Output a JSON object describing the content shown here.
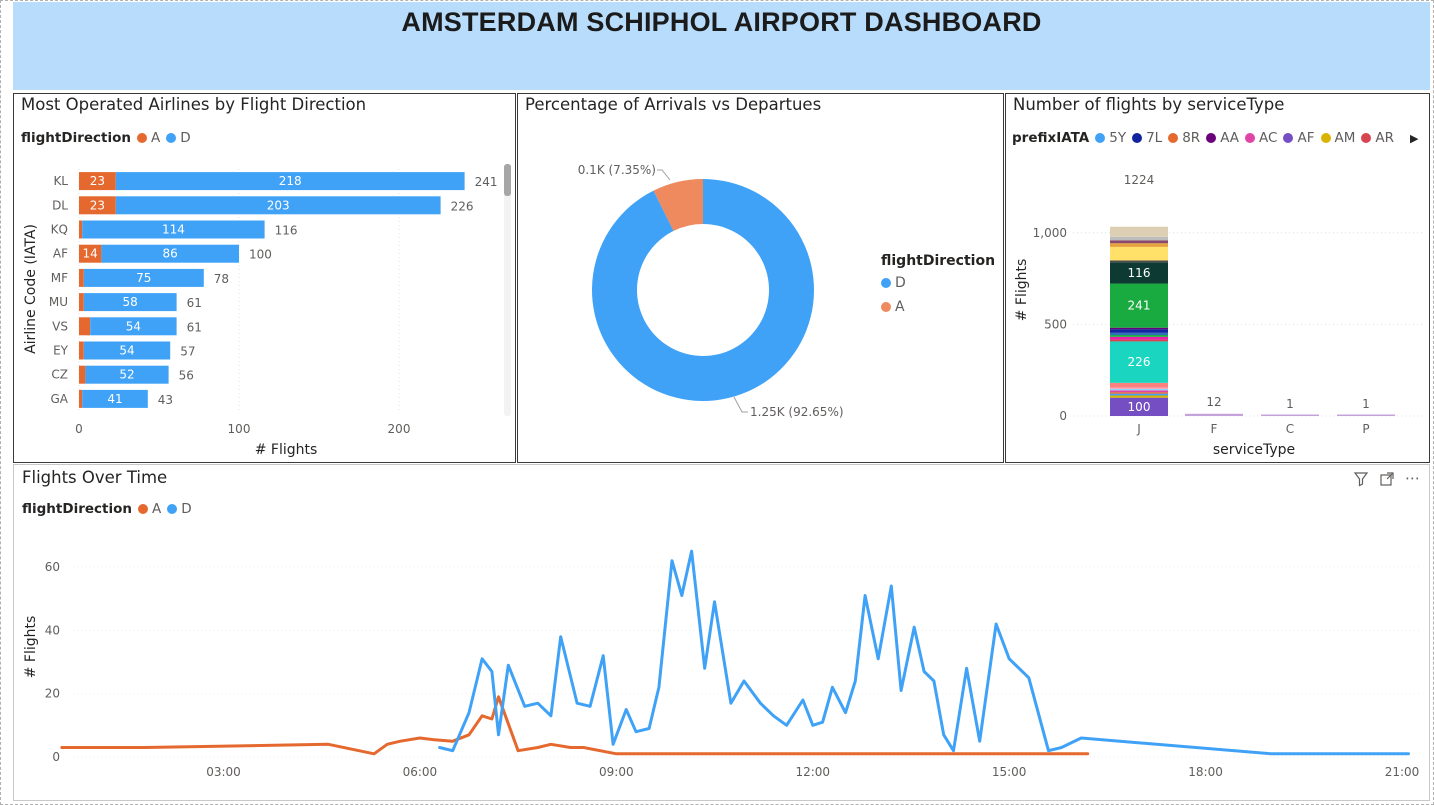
{
  "header": {
    "title": "AMSTERDAM SCHIPHOL AIRPORT DASHBOARD"
  },
  "colors": {
    "A": "#e5692f",
    "D": "#3fa2f7",
    "donutA": "#ee8a5e"
  },
  "panel_airlines": {
    "title": "Most Operated Airlines by Flight Direction",
    "legend_title": "flightDirection",
    "legend": [
      {
        "label": "A",
        "color": "#e5692f"
      },
      {
        "label": "D",
        "color": "#3fa2f7"
      }
    ]
  },
  "panel_donut": {
    "title": "Percentage of Arrivals vs Departues",
    "legend_title": "flightDirection",
    "legend": [
      {
        "label": "D",
        "color": "#3fa2f7"
      },
      {
        "label": "A",
        "color": "#ee8a5e"
      }
    ]
  },
  "panel_service": {
    "title": "Number of flights by serviceType",
    "legend_title": "prefixIATA",
    "legend": [
      {
        "label": "5Y",
        "color": "#3fa2f7"
      },
      {
        "label": "7L",
        "color": "#12239e"
      },
      {
        "label": "8R",
        "color": "#e5692f"
      },
      {
        "label": "AA",
        "color": "#6b007b"
      },
      {
        "label": "AC",
        "color": "#e044a7"
      },
      {
        "label": "AF",
        "color": "#744ec2"
      },
      {
        "label": "AM",
        "color": "#d9b300"
      },
      {
        "label": "AR",
        "color": "#d64550"
      }
    ]
  },
  "panel_time": {
    "title": "Flights Over Time",
    "legend_title": "flightDirection",
    "legend": [
      {
        "label": "A",
        "color": "#e5692f"
      },
      {
        "label": "D",
        "color": "#3fa2f7"
      }
    ]
  },
  "chart_data": [
    {
      "type": "bar",
      "orientation": "horizontal",
      "stacked": true,
      "title": "Most Operated Airlines by Flight Direction",
      "xlabel": "# Flights",
      "ylabel": "Airline Code (IATA)",
      "xlim": [
        0,
        250
      ],
      "xticks": [
        0,
        100,
        200
      ],
      "categories": [
        "KL",
        "DL",
        "KQ",
        "AF",
        "MF",
        "MU",
        "VS",
        "EY",
        "CZ",
        "GA"
      ],
      "series": [
        {
          "name": "A",
          "values": [
            23,
            23,
            2,
            14,
            3,
            3,
            7,
            3,
            4,
            2
          ],
          "labels": [
            "23",
            "23",
            "",
            "14",
            "",
            "",
            "",
            "",
            "",
            ""
          ]
        },
        {
          "name": "D",
          "values": [
            218,
            203,
            114,
            86,
            75,
            58,
            54,
            54,
            52,
            41
          ],
          "labels": [
            "218",
            "203",
            "114",
            "86",
            "75",
            "58",
            "54",
            "54",
            "52",
            "41"
          ]
        }
      ],
      "totals": [
        "241",
        "226",
        "116",
        "100",
        "78",
        "61",
        "61",
        "57",
        "56",
        "43"
      ],
      "total_values": [
        241,
        226,
        116,
        100,
        78,
        61,
        61,
        57,
        56,
        43
      ],
      "legend_position": "top-left"
    },
    {
      "type": "pie",
      "donut": true,
      "title": "Percentage of Arrivals vs Departues",
      "slices": [
        {
          "name": "D",
          "value": 92.65,
          "label": "1.25K (92.65%)"
        },
        {
          "name": "A",
          "value": 7.35,
          "label": "0.1K (7.35%)"
        }
      ],
      "legend_position": "right"
    },
    {
      "type": "bar",
      "stacked": true,
      "title": "Number of flights by serviceType",
      "xlabel": "serviceType",
      "ylabel": "# Flights",
      "ylim": [
        0,
        1250
      ],
      "yticks": [
        0,
        500,
        1000
      ],
      "ytick_labels": [
        "0",
        "500",
        "1,000"
      ],
      "categories": [
        "J",
        "F",
        "C",
        "P"
      ],
      "totals": [
        "1224",
        "12",
        "1",
        "1"
      ],
      "total_values": [
        1224,
        12,
        1,
        1
      ],
      "segments_J": [
        {
          "value": 100,
          "color": "#744ec2",
          "label": "100"
        },
        {
          "value": 12,
          "color": "#d9b300",
          "label": ""
        },
        {
          "value": 10,
          "color": "#3fa2f7",
          "label": ""
        },
        {
          "value": 8,
          "color": "#e5692f",
          "label": ""
        },
        {
          "value": 10,
          "color": "#e044a7",
          "label": ""
        },
        {
          "value": 8,
          "color": "#94d6ff",
          "label": ""
        },
        {
          "value": 8,
          "color": "#ff9fb1",
          "label": ""
        },
        {
          "value": 25,
          "color": "#fd817e",
          "label": ""
        },
        {
          "value": 226,
          "color": "#1ad6c1",
          "label": "226"
        },
        {
          "value": 10,
          "color": "#d64550",
          "label": ""
        },
        {
          "value": 15,
          "color": "#e81fa8",
          "label": ""
        },
        {
          "value": 10,
          "color": "#1aab40",
          "label": ""
        },
        {
          "value": 12,
          "color": "#2f6fb8",
          "label": ""
        },
        {
          "value": 20,
          "color": "#12239e",
          "label": ""
        },
        {
          "value": 8,
          "color": "#6b007b",
          "label": ""
        },
        {
          "value": 241,
          "color": "#1aab40",
          "label": "241"
        },
        {
          "value": 116,
          "color": "#0d3b34",
          "label": "116"
        },
        {
          "value": 10,
          "color": "#4a4a4a",
          "label": ""
        },
        {
          "value": 74,
          "color": "#ffe169",
          "label": ""
        },
        {
          "value": 20,
          "color": "#e6a23c",
          "label": ""
        },
        {
          "value": 15,
          "color": "#8a4a6b",
          "label": ""
        },
        {
          "value": 20,
          "color": "#bdbdbd",
          "label": ""
        },
        {
          "value": 55,
          "color": "#dccfb4",
          "label": ""
        }
      ],
      "other_color": "#c3a3d9"
    },
    {
      "type": "line",
      "title": "Flights Over Time",
      "ylabel": "# Flights",
      "xlim": [
        0.5,
        21.25
      ],
      "ylim": [
        0,
        66
      ],
      "xticks": [
        3,
        6,
        9,
        12,
        15,
        18,
        21
      ],
      "xtick_labels": [
        "03:00",
        "06:00",
        "09:00",
        "12:00",
        "15:00",
        "18:00",
        "21:00"
      ],
      "yticks": [
        0,
        20,
        40,
        60
      ],
      "series": [
        {
          "name": "A",
          "x": [
            0.53,
            1.8,
            4.6,
            5.3,
            5.5,
            5.7,
            6.0,
            6.2,
            6.5,
            6.75,
            6.95,
            7.1,
            7.2,
            7.5,
            7.8,
            8.0,
            8.3,
            8.5,
            9.0,
            12.0,
            15.0,
            16.0,
            16.2
          ],
          "y": [
            3,
            3,
            4,
            1,
            4,
            5,
            6,
            5.5,
            5,
            7,
            13,
            12,
            19,
            2,
            3,
            4,
            3,
            3,
            1,
            1,
            1,
            1,
            1
          ]
        },
        {
          "name": "D",
          "x": [
            6.3,
            6.5,
            6.75,
            6.95,
            7.1,
            7.2,
            7.35,
            7.6,
            7.8,
            8.0,
            8.15,
            8.4,
            8.6,
            8.8,
            8.95,
            9.15,
            9.3,
            9.5,
            9.65,
            9.85,
            10.0,
            10.15,
            10.35,
            10.5,
            10.75,
            10.95,
            11.2,
            11.4,
            11.6,
            11.85,
            12.0,
            12.15,
            12.3,
            12.5,
            12.65,
            12.8,
            13.0,
            13.2,
            13.35,
            13.55,
            13.7,
            13.85,
            14.0,
            14.15,
            14.35,
            14.55,
            14.8,
            15.0,
            15.3,
            15.6,
            15.8,
            16.1,
            19.0,
            21.1
          ],
          "y": [
            3,
            2,
            14,
            31,
            27,
            7,
            29,
            16,
            17,
            13,
            38,
            17,
            16,
            32,
            4,
            15,
            8,
            9,
            22,
            62,
            51,
            65,
            28,
            49,
            17,
            24,
            17,
            13,
            10,
            18,
            10,
            11,
            22,
            14,
            24,
            51,
            31,
            54,
            21,
            41,
            27,
            24,
            7,
            2,
            28,
            5,
            42,
            31,
            25,
            2,
            3,
            6,
            1,
            1
          ]
        }
      ],
      "legend_position": "top-left"
    }
  ]
}
